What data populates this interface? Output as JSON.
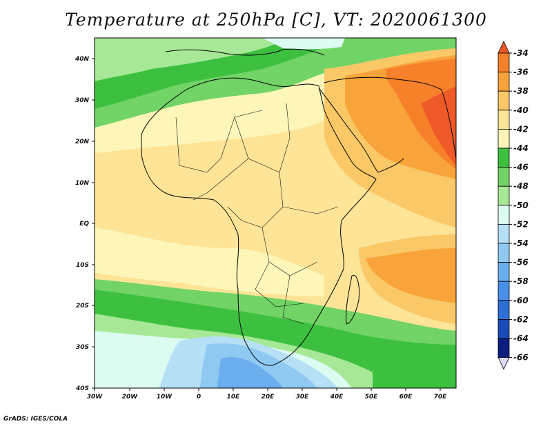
{
  "title": "Temperature at 250hPa [C], VT: 2020061300",
  "footer": "GrADS: IGES/COLA",
  "x_ticks": [
    "30W",
    "20W",
    "10W",
    "0",
    "10E",
    "20E",
    "30E",
    "40E",
    "50E",
    "60E",
    "70E"
  ],
  "y_ticks": [
    "40N",
    "30N",
    "20N",
    "10N",
    "EQ",
    "10S",
    "20S",
    "30S",
    "40S"
  ],
  "colorbar": {
    "labels": [
      "-34",
      "-36",
      "-38",
      "-40",
      "-42",
      "-44",
      "-46",
      "-48",
      "-50",
      "-52",
      "-54",
      "-56",
      "-58",
      "-60",
      "-62",
      "-64",
      "-66"
    ],
    "colors": [
      "#f05a28",
      "#f7802a",
      "#f9a43a",
      "#fbc868",
      "#fde497",
      "#fdf6b8",
      "#3dc040",
      "#72d466",
      "#a7e897",
      "#dcfbf1",
      "#b5e0f6",
      "#8fc9f2",
      "#6aaeee",
      "#4a8fe8",
      "#2e6fd6",
      "#1a4cb8",
      "#0c1f80",
      "#e0d8f7"
    ]
  },
  "colors": {
    "coast": "#000000",
    "border": "#111111"
  }
}
